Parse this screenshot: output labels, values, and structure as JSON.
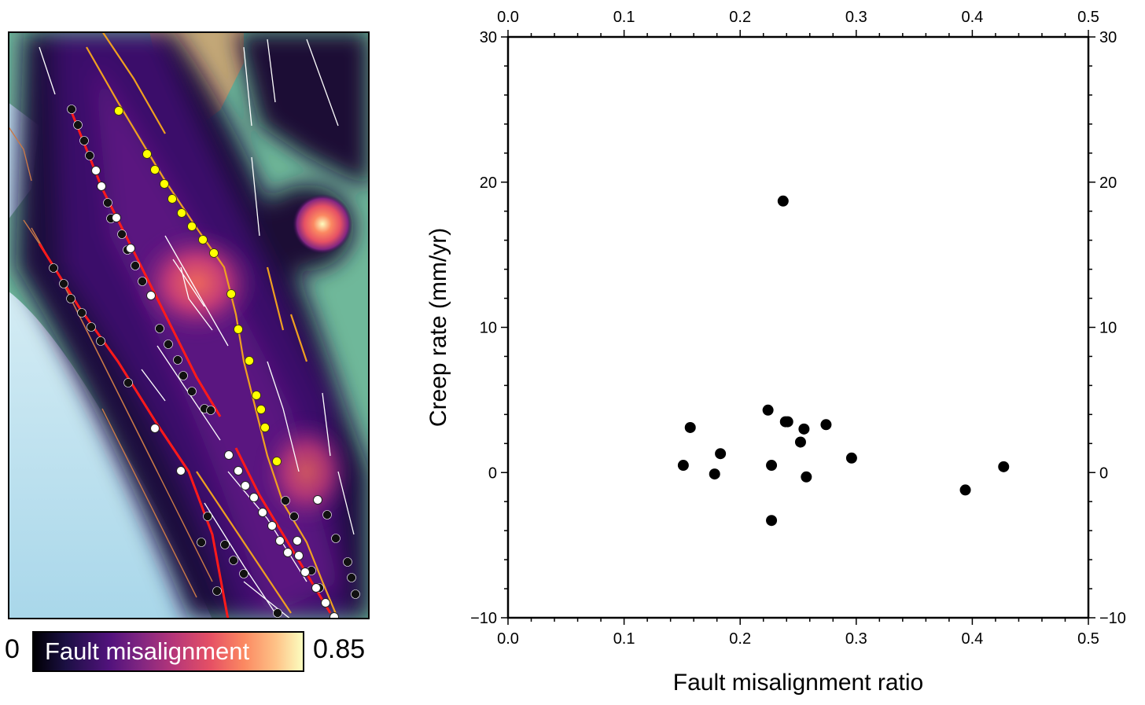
{
  "map": {
    "colors": {
      "land": "#6fb89a",
      "ocean": "#bde3ef",
      "mountain": "#c4a878",
      "active_fault": "#ff1a1a",
      "secondary_fault": "#f0a020",
      "minor_fault": "#ffffff",
      "offshore_fault": "#c87848"
    }
  },
  "colorbar": {
    "min_label": "0",
    "max_label": "0.85",
    "title": "Fault misalignment",
    "colormap": "magma"
  },
  "chart_data": {
    "type": "scatter",
    "title": "",
    "xlabel": "Fault misalignment ratio",
    "ylabel": "Creep rate (mm/yr)",
    "xlim": [
      0,
      0.5
    ],
    "ylim": [
      -10,
      30
    ],
    "xticks": [
      "0.0",
      "0.1",
      "0.2",
      "0.3",
      "0.4",
      "0.5"
    ],
    "yticks": [
      "-10",
      "0",
      "10",
      "20",
      "30"
    ],
    "grid": false,
    "marker_color": "#000000",
    "x": [
      0.151,
      0.157,
      0.178,
      0.183,
      0.224,
      0.227,
      0.227,
      0.237,
      0.239,
      0.241,
      0.252,
      0.255,
      0.257,
      0.274,
      0.296,
      0.394,
      0.427
    ],
    "y": [
      0.5,
      3.1,
      -0.1,
      1.3,
      4.3,
      0.5,
      -3.3,
      18.7,
      3.5,
      3.5,
      2.1,
      3.0,
      -0.3,
      3.3,
      1.0,
      -1.2,
      0.4
    ]
  }
}
